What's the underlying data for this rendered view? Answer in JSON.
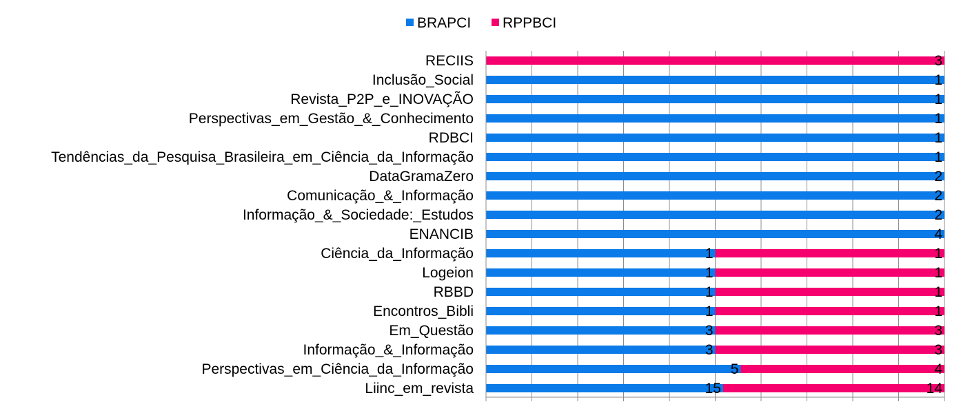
{
  "chart_data": {
    "type": "bar",
    "orientation": "horizontal",
    "stacking": "percent",
    "legend_position": "top",
    "grid": "vertical",
    "xlim": [
      0,
      1
    ],
    "categories": [
      "RECIIS",
      "Inclusão_Social",
      "Revista_P2P_e_INOVAÇÃO",
      "Perspectivas_em_Gestão_&_Conhecimento",
      "RDBCI",
      "Tendências_da_Pesquisa_Brasileira_em_Ciência_da_Informação",
      "DataGramaZero",
      "Comunicação_&_Informação",
      "Informação_&_Sociedade:_Estudos",
      "ENANCIB",
      "Ciência_da_Informação",
      "Logeion",
      "RBBD",
      "Encontros_Bibli",
      "Em_Questão",
      "Informação_&_Informação",
      "Perspectivas_em_Ciência_da_Informação",
      "Liinc_em_revista"
    ],
    "series": [
      {
        "name": "BRAPCI",
        "color": "#0A7BE8",
        "values": [
          0,
          1,
          1,
          1,
          1,
          1,
          2,
          2,
          2,
          4,
          1,
          1,
          1,
          1,
          3,
          3,
          5,
          15
        ]
      },
      {
        "name": "RPPBCI",
        "color": "#F5006E",
        "values": [
          3,
          0,
          0,
          0,
          0,
          0,
          0,
          0,
          0,
          0,
          1,
          1,
          1,
          1,
          3,
          3,
          4,
          14
        ]
      }
    ]
  }
}
